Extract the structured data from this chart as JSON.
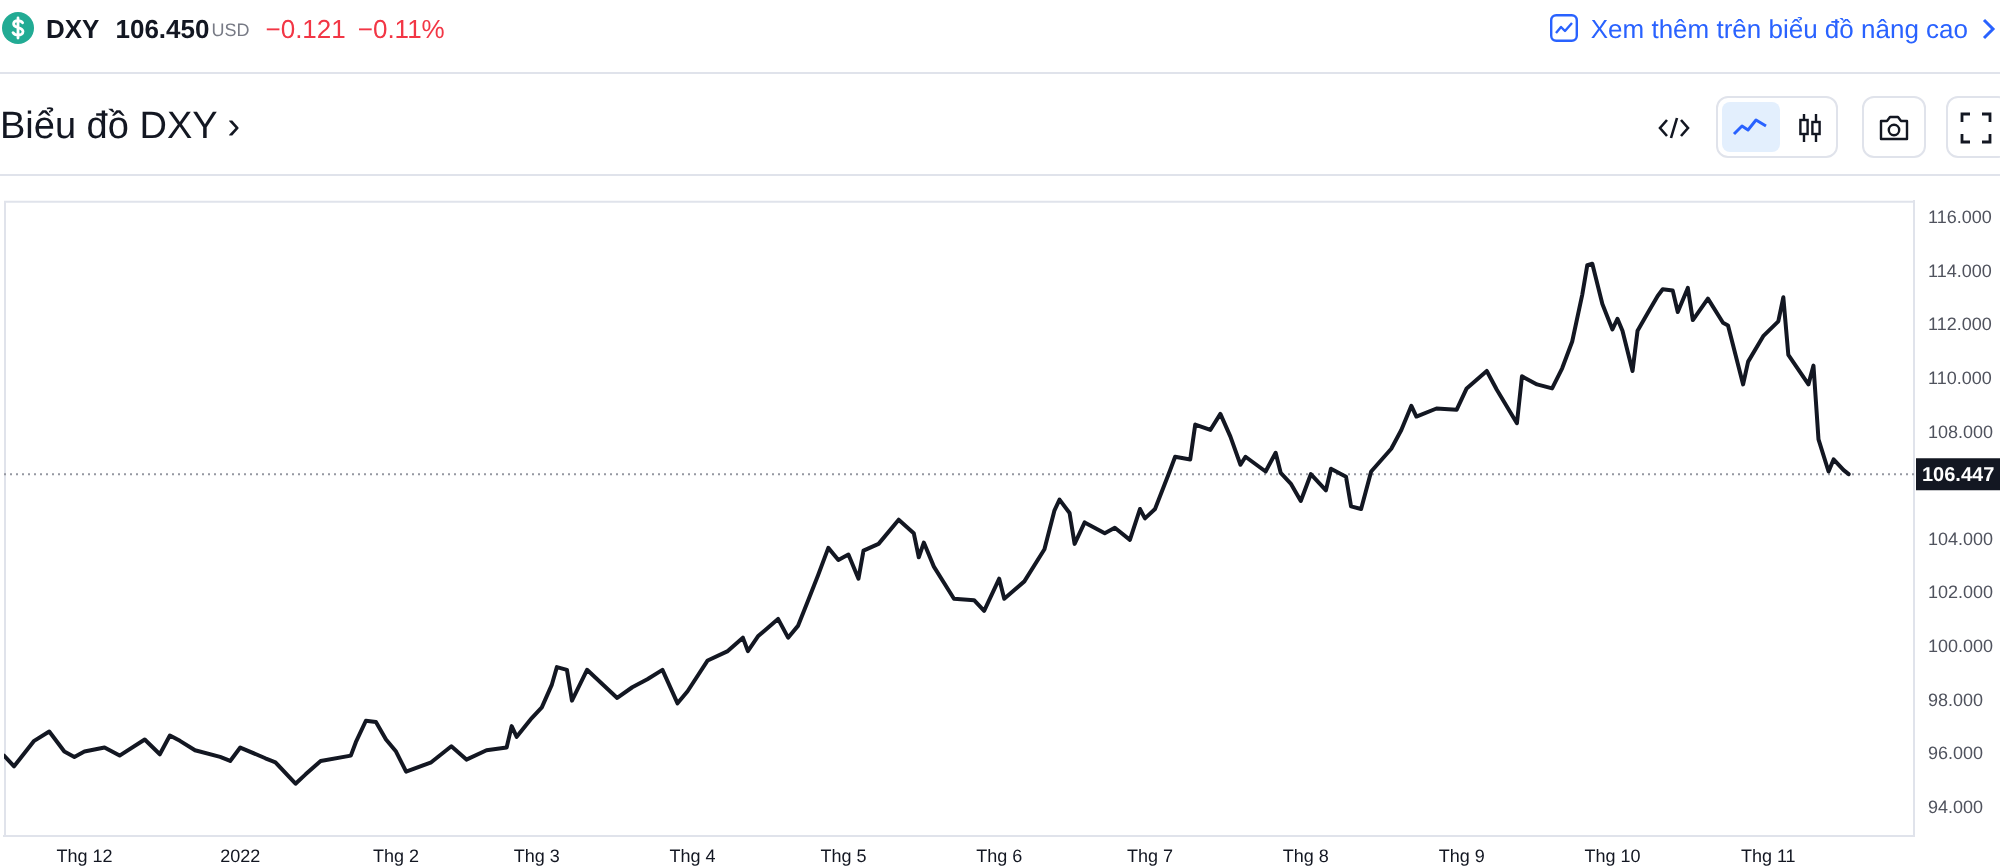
{
  "chart_data": {
    "type": "line",
    "title": "Biểu đồ DXY ›",
    "annotations": [
      "DXY",
      "106.450",
      "USD",
      "−0.121",
      "−0.11%",
      "Xem thêm trên biểu đồ nâng cao"
    ],
    "x": [
      "2021-11-15",
      "2021-11-17",
      "2021-11-21",
      "2021-11-24",
      "2021-11-27",
      "2021-11-29",
      "2021-12-01",
      "2021-12-05",
      "2021-12-08",
      "2021-12-13",
      "2021-12-16",
      "2021-12-18",
      "2021-12-20",
      "2021-12-23",
      "2021-12-28",
      "2021-12-30",
      "2022-01-01",
      "2022-01-06",
      "2022-01-08",
      "2022-01-12",
      "2022-01-14",
      "2022-01-17",
      "2022-01-23",
      "2022-01-24",
      "2022-01-26",
      "2022-01-28",
      "2022-01-30",
      "2022-02-01",
      "2022-02-03",
      "2022-02-08",
      "2022-02-12",
      "2022-02-15",
      "2022-02-19",
      "2022-02-23",
      "2022-02-24",
      "2022-02-25",
      "2022-02-28",
      "2022-03-02",
      "2022-03-04",
      "2022-03-05",
      "2022-03-07",
      "2022-03-08",
      "2022-03-11",
      "2022-03-17",
      "2022-03-20",
      "2022-03-23",
      "2022-03-26",
      "2022-03-29",
      "2022-03-31",
      "2022-04-04",
      "2022-04-08",
      "2022-04-11",
      "2022-04-12",
      "2022-04-14",
      "2022-04-18",
      "2022-04-20",
      "2022-04-22",
      "2022-04-24",
      "2022-04-26",
      "2022-04-28",
      "2022-04-30",
      "2022-05-02",
      "2022-05-04",
      "2022-05-05",
      "2022-05-08",
      "2022-05-12",
      "2022-05-15",
      "2022-05-16",
      "2022-05-17",
      "2022-05-19",
      "2022-05-22",
      "2022-05-23",
      "2022-05-27",
      "2022-05-29",
      "2022-06-01",
      "2022-06-02",
      "2022-06-06",
      "2022-06-10",
      "2022-06-12",
      "2022-06-13",
      "2022-06-15",
      "2022-06-16",
      "2022-06-18",
      "2022-06-22",
      "2022-06-24",
      "2022-06-27",
      "2022-06-29",
      "2022-06-30",
      "2022-07-02",
      "2022-07-05",
      "2022-07-06",
      "2022-07-09",
      "2022-07-10",
      "2022-07-13",
      "2022-07-15",
      "2022-07-17",
      "2022-07-19",
      "2022-07-20",
      "2022-07-24",
      "2022-07-26",
      "2022-07-27",
      "2022-07-29",
      "2022-07-31",
      "2022-08-02",
      "2022-08-05",
      "2022-08-06",
      "2022-08-09",
      "2022-08-10",
      "2022-08-12",
      "2022-08-14",
      "2022-08-18",
      "2022-08-20",
      "2022-08-22",
      "2022-08-23",
      "2022-08-27",
      "2022-08-31",
      "2022-09-02",
      "2022-09-06",
      "2022-09-08",
      "2022-09-12",
      "2022-09-13",
      "2022-09-16",
      "2022-09-19",
      "2022-09-21",
      "2022-09-23",
      "2022-09-25",
      "2022-09-26",
      "2022-09-27",
      "2022-09-29",
      "2022-10-01",
      "2022-10-02",
      "2022-10-03",
      "2022-10-05",
      "2022-10-06",
      "2022-10-08",
      "2022-10-10",
      "2022-10-11",
      "2022-10-13",
      "2022-10-14",
      "2022-10-16",
      "2022-10-17",
      "2022-10-20",
      "2022-10-23",
      "2022-10-24",
      "2022-10-27",
      "2022-10-28",
      "2022-10-31",
      "2022-11-03",
      "2022-11-04",
      "2022-11-05",
      "2022-11-07",
      "2022-11-09",
      "2022-11-10",
      "2022-11-11",
      "2022-11-13",
      "2022-11-14",
      "2022-11-16",
      "2022-11-17"
    ],
    "values": [
      95.95,
      95.55,
      96.5,
      96.85,
      96.1,
      95.9,
      96.1,
      96.25,
      95.95,
      96.55,
      96.0,
      96.7,
      96.5,
      96.15,
      95.9,
      95.75,
      96.25,
      95.85,
      95.7,
      94.9,
      95.25,
      95.75,
      95.95,
      96.45,
      97.25,
      97.2,
      96.55,
      96.1,
      95.35,
      95.7,
      96.3,
      95.8,
      96.15,
      96.25,
      97.05,
      96.65,
      97.35,
      97.75,
      98.6,
      99.25,
      99.15,
      98.0,
      99.15,
      98.1,
      98.5,
      98.8,
      99.15,
      97.9,
      98.35,
      99.5,
      99.85,
      100.35,
      99.85,
      100.4,
      101.05,
      100.35,
      100.8,
      101.75,
      102.7,
      103.7,
      103.25,
      103.45,
      102.55,
      103.6,
      103.85,
      104.75,
      104.25,
      103.35,
      103.9,
      103.0,
      102.1,
      101.8,
      101.75,
      101.35,
      102.55,
      101.8,
      102.45,
      103.65,
      105.1,
      105.5,
      105.0,
      103.85,
      104.65,
      104.25,
      104.45,
      104.0,
      105.15,
      104.8,
      105.15,
      106.6,
      107.1,
      107.0,
      108.3,
      108.1,
      108.7,
      107.85,
      106.8,
      107.1,
      106.55,
      107.25,
      106.5,
      106.1,
      105.45,
      106.45,
      105.85,
      106.65,
      106.35,
      105.25,
      105.15,
      106.55,
      107.4,
      108.1,
      109.0,
      108.6,
      108.9,
      108.85,
      109.65,
      110.3,
      109.6,
      108.35,
      110.1,
      109.8,
      109.65,
      110.4,
      111.4,
      113.15,
      114.25,
      114.3,
      112.8,
      111.85,
      112.25,
      111.8,
      110.3,
      111.8,
      112.45,
      113.1,
      113.35,
      113.3,
      112.5,
      113.4,
      112.2,
      113.0,
      112.1,
      112.0,
      109.8,
      110.65,
      111.6,
      112.15,
      113.05,
      110.9,
      110.35,
      109.8,
      110.5,
      107.75,
      106.55,
      107.0,
      106.6,
      106.45
    ],
    "color": "#131722",
    "marker": "none",
    "grid": false,
    "legend": false,
    "xlim": [
      "2021-11-15",
      "2022-11-30"
    ],
    "xticks": [
      {
        "value": "2021-12-01",
        "label": "Thg 12"
      },
      {
        "value": "2022-01-01",
        "label": "2022"
      },
      {
        "value": "2022-02-01",
        "label": "Thg 2"
      },
      {
        "value": "2022-03-01",
        "label": "Thg 3"
      },
      {
        "value": "2022-04-01",
        "label": "Thg 4"
      },
      {
        "value": "2022-05-01",
        "label": "Thg 5"
      },
      {
        "value": "2022-06-01",
        "label": "Thg 6"
      },
      {
        "value": "2022-07-01",
        "label": "Thg 7"
      },
      {
        "value": "2022-08-01",
        "label": "Thg 8"
      },
      {
        "value": "2022-09-01",
        "label": "Thg 9"
      },
      {
        "value": "2022-10-01",
        "label": "Thg 10"
      },
      {
        "value": "2022-11-01",
        "label": "Thg 11"
      }
    ],
    "ylim": [
      92.95,
      116.65
    ],
    "yticks": [
      {
        "value": 94,
        "label": "94.000"
      },
      {
        "value": 96,
        "label": "96.000"
      },
      {
        "value": 98,
        "label": "98.000"
      },
      {
        "value": 100,
        "label": "100.000"
      },
      {
        "value": 102,
        "label": "102.000"
      },
      {
        "value": 104,
        "label": "104.000"
      },
      {
        "value": 108,
        "label": "108.000"
      },
      {
        "value": 110,
        "label": "110.000"
      },
      {
        "value": 112,
        "label": "112.000"
      },
      {
        "value": 114,
        "label": "114.000"
      },
      {
        "value": 116,
        "label": "116.000"
      }
    ],
    "ref_lines": [
      {
        "axis": "y",
        "value": 106.447,
        "label": "106.447",
        "line_style": "dotted",
        "color": "#9598a1"
      }
    ]
  }
}
